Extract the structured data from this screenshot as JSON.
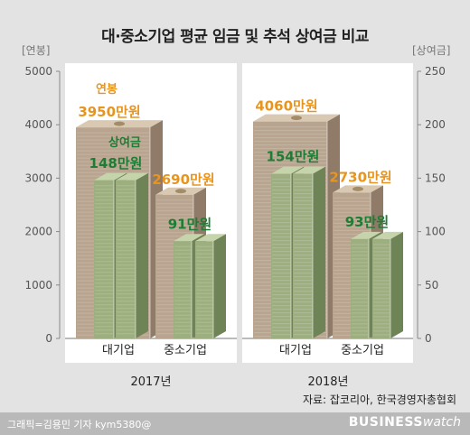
{
  "title": "대·중소기업 평균 임금 및 추석 상여금 비교",
  "colors": {
    "salary_front": "#b8a48f",
    "salary_side": "#8f7b67",
    "salary_top": "#d9c9b3",
    "bonus_front": "#9dae7f",
    "bonus_side": "#6f8456",
    "bonus_top": "#c6d4ac",
    "salary_label": "#e8951f",
    "bonus_label": "#1d7d34"
  },
  "chart_data": {
    "type": "bar",
    "title": "대·중소기업 평균 임금 및 추석 상여금 비교",
    "y_left": {
      "unit": "[연봉]",
      "ticks": [
        0,
        1000,
        2000,
        3000,
        4000,
        5000
      ],
      "ylim": [
        0,
        5000
      ]
    },
    "y_right": {
      "unit": "[상여금]",
      "ticks": [
        0,
        50,
        100,
        150,
        200,
        250
      ],
      "ylim": [
        0,
        250
      ]
    },
    "groups": [
      {
        "year": "2017년",
        "categories": [
          "대기업",
          "중소기업"
        ],
        "salary": [
          3950,
          2690
        ],
        "bonus": [
          148,
          91
        ],
        "salary_labels": [
          "3950만원",
          "2690만원"
        ],
        "bonus_labels": [
          "148만원",
          "91만원"
        ]
      },
      {
        "year": "2018년",
        "categories": [
          "대기업",
          "중소기업"
        ],
        "salary": [
          4060,
          2730
        ],
        "bonus": [
          154,
          93
        ],
        "salary_labels": [
          "4060만원",
          "2730만원"
        ],
        "bonus_labels": [
          "154만원",
          "93만원"
        ]
      }
    ],
    "series": [
      {
        "name": "연봉",
        "axis": "left"
      },
      {
        "name": "상여금",
        "axis": "right"
      }
    ]
  },
  "source": "자료: 잡코리아, 한국경영자총협회",
  "credit": "그래픽=김용민 기자 kym5380@",
  "brand": {
    "bold": "BUSINESS",
    "light": "watch"
  }
}
